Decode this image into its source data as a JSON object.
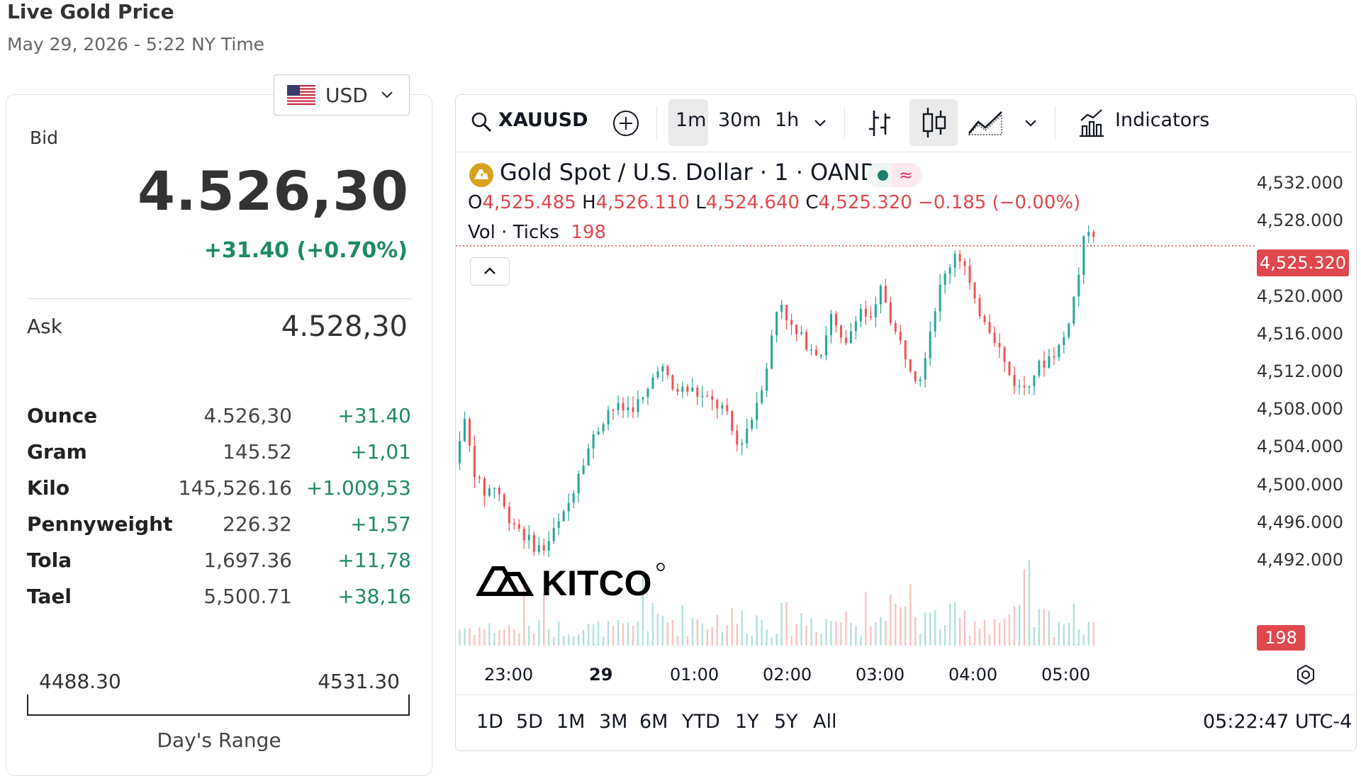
{
  "header": {
    "title": "Live Gold Price",
    "subtitle": "May 29, 2026 - 5:22 NY Time"
  },
  "currency": {
    "selected": "USD",
    "flag_icon": "us-flag-icon"
  },
  "quote": {
    "bid_label": "Bid",
    "bid": "4.526,30",
    "change": "+31.40 (+0.70%)",
    "ask_label": "Ask",
    "ask": "4.528,30",
    "up_color": "#1e8a66"
  },
  "units": [
    {
      "name": "Ounce",
      "price": "4.526,30",
      "change": "+31.40"
    },
    {
      "name": "Gram",
      "price": "145.52",
      "change": "+1,01"
    },
    {
      "name": "Kilo",
      "price": "145,526.16",
      "change": "+1.009,53"
    },
    {
      "name": "Pennyweight",
      "price": "226.32",
      "change": "+1,57"
    },
    {
      "name": "Tola",
      "price": "1,697.36",
      "change": "+11,78"
    },
    {
      "name": "Tael",
      "price": "5,500.71",
      "change": "+38,16"
    }
  ],
  "day_range": {
    "low": "4488.30",
    "high": "4531.30",
    "label": "Day's Range"
  },
  "chart": {
    "toolbar": {
      "symbol": "XAUUSD",
      "intervals": [
        "1m",
        "30m",
        "1h"
      ],
      "active_interval": "1m",
      "indicators_label": "Indicators"
    },
    "legend": {
      "title": "Gold Spot / U.S. Dollar · 1 · OANDA",
      "o_label": "O",
      "o": "4,525.485",
      "h_label": "H",
      "h": "4,526.110",
      "l_label": "L",
      "l": "4,524.640",
      "c_label": "C",
      "c": "4,525.320",
      "change": "−0.185 (−0.00%)",
      "vol_label": "Vol · Ticks",
      "vol": "198"
    },
    "last_price_tag": "4,525.320",
    "vol_tag": "198",
    "ranges": [
      "1D",
      "5D",
      "1M",
      "3M",
      "6M",
      "YTD",
      "1Y",
      "5Y",
      "All"
    ],
    "clock": "05:22:47 UTC-4",
    "watermark": "KITCO",
    "up_color": "#26a69a",
    "down_color": "#ef5350"
  },
  "chart_data": {
    "type": "candlestick",
    "title": "Gold Spot / U.S. Dollar · 1 · OANDA",
    "y_ticks": [
      "4,532.000",
      "4,528.000",
      "4,524.000",
      "4,520.000",
      "4,516.000",
      "4,512.000",
      "4,508.000",
      "4,504.000",
      "4,500.000",
      "4,496.000",
      "4,492.000"
    ],
    "ylim": [
      4490.6,
      4532.9
    ],
    "x_ticks": [
      "23:00",
      "29",
      "01:00",
      "02:00",
      "03:00",
      "04:00",
      "05:00"
    ],
    "price_path": [
      [
        22.5,
        4500
      ],
      [
        22.6,
        4505
      ],
      [
        22.65,
        4507
      ],
      [
        22.75,
        4502
      ],
      [
        22.85,
        4499
      ],
      [
        23.0,
        4500
      ],
      [
        23.1,
        4497
      ],
      [
        23.2,
        4496
      ],
      [
        23.35,
        4494
      ],
      [
        23.5,
        4493
      ],
      [
        23.75,
        4497
      ],
      [
        23.9,
        4502
      ],
      [
        24.0,
        4504
      ],
      [
        24.2,
        4508
      ],
      [
        24.4,
        4508
      ],
      [
        24.6,
        4509
      ],
      [
        24.75,
        4513
      ],
      [
        24.9,
        4510
      ],
      [
        25.1,
        4510
      ],
      [
        25.25,
        4509
      ],
      [
        25.45,
        4508
      ],
      [
        25.6,
        4504
      ],
      [
        25.75,
        4507
      ],
      [
        25.9,
        4512
      ],
      [
        26.05,
        4520
      ],
      [
        26.2,
        4516
      ],
      [
        26.35,
        4515
      ],
      [
        26.5,
        4514
      ],
      [
        26.6,
        4518
      ],
      [
        26.75,
        4514
      ],
      [
        26.9,
        4519
      ],
      [
        27.05,
        4517
      ],
      [
        27.15,
        4521
      ],
      [
        27.3,
        4516
      ],
      [
        27.45,
        4513
      ],
      [
        27.55,
        4511
      ],
      [
        27.75,
        4520
      ],
      [
        27.95,
        4525
      ],
      [
        28.05,
        4523
      ],
      [
        28.15,
        4519
      ],
      [
        28.25,
        4518
      ],
      [
        28.4,
        4515
      ],
      [
        28.5,
        4512
      ],
      [
        28.65,
        4510
      ],
      [
        28.8,
        4512
      ],
      [
        28.9,
        4513
      ],
      [
        29.1,
        4515
      ],
      [
        29.25,
        4521
      ],
      [
        29.35,
        4527
      ],
      [
        29.42,
        4528
      ],
      [
        29.45,
        4525.32
      ]
    ],
    "volume_peak_ticks": 198
  }
}
